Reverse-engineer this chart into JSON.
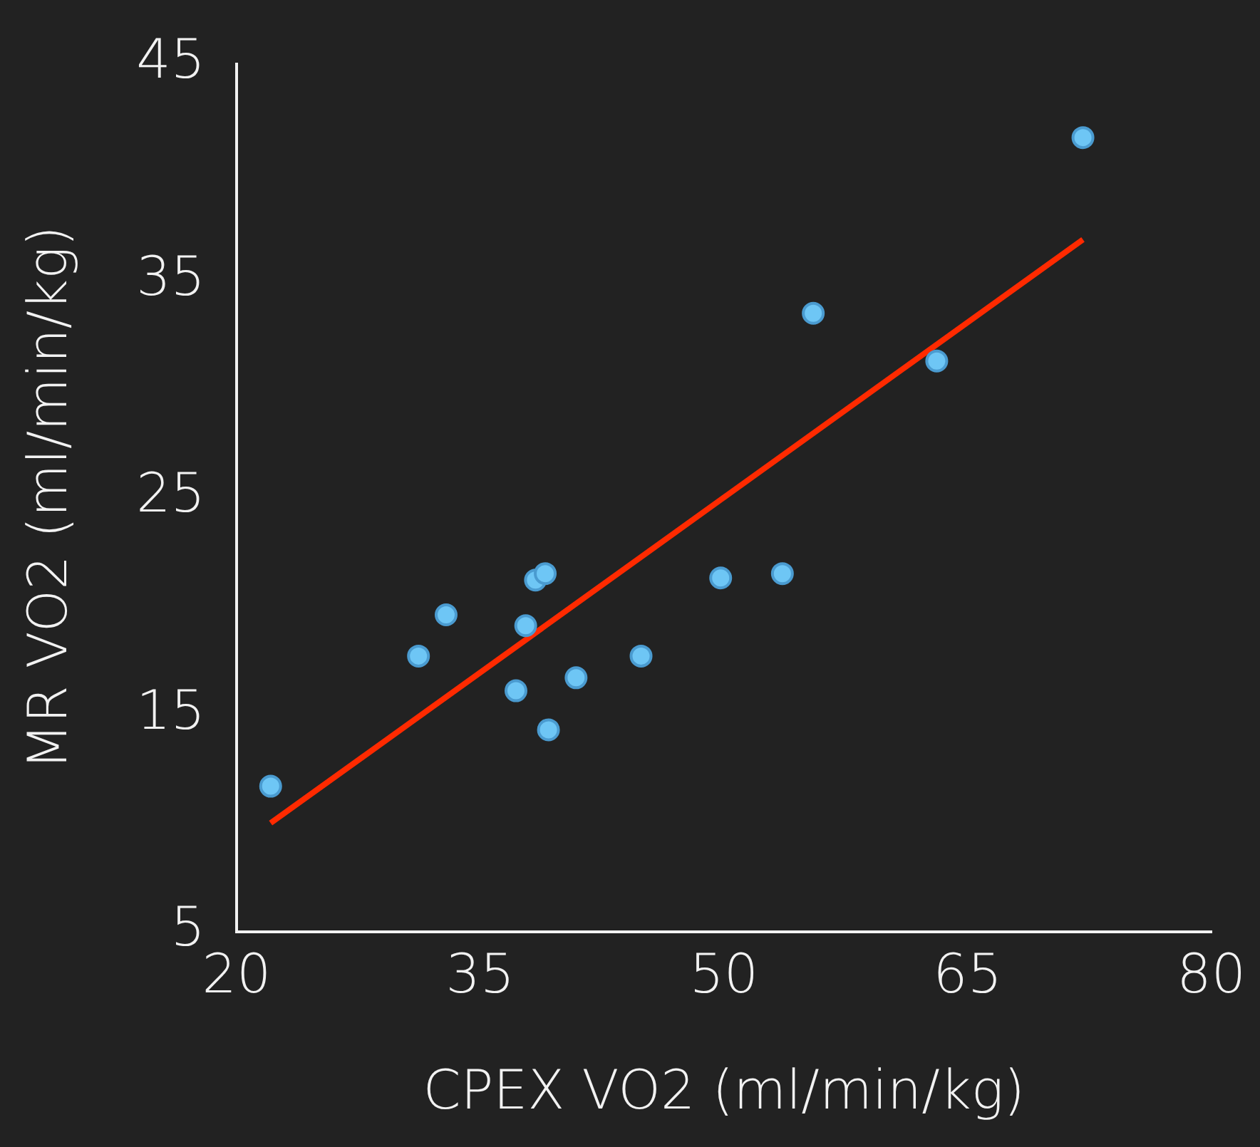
{
  "chart_data": {
    "type": "scatter",
    "xlabel": "CPEX VO2 (ml/min/kg)",
    "ylabel": "MR VO2 (ml/min/kg)",
    "xlim": [
      20,
      80
    ],
    "xticks": [
      20,
      35,
      50,
      65,
      80
    ],
    "ylim": [
      5,
      45
    ],
    "yticks": [
      5,
      15,
      25,
      35,
      45
    ],
    "grid": false,
    "legend": false,
    "marker": "circle",
    "series": [
      {
        "color": "#6ec6f5",
        "x": [
          22.1,
          31.2,
          32.9,
          37.2,
          37.8,
          38.4,
          39.0,
          39.2,
          40.9,
          44.9,
          49.8,
          53.6,
          55.5,
          63.1,
          72.1
        ],
        "values": [
          11.7,
          17.7,
          19.6,
          16.1,
          19.1,
          21.2,
          21.5,
          14.3,
          16.7,
          17.7,
          21.3,
          21.5,
          33.5,
          31.3,
          41.6
        ]
      },
      {
        "type": "line",
        "color": "#ff2a00",
        "line_style": "solid",
        "marker": "none",
        "x": [
          22.1,
          72.1
        ],
        "values": [
          10.0,
          36.9
        ]
      }
    ]
  }
}
